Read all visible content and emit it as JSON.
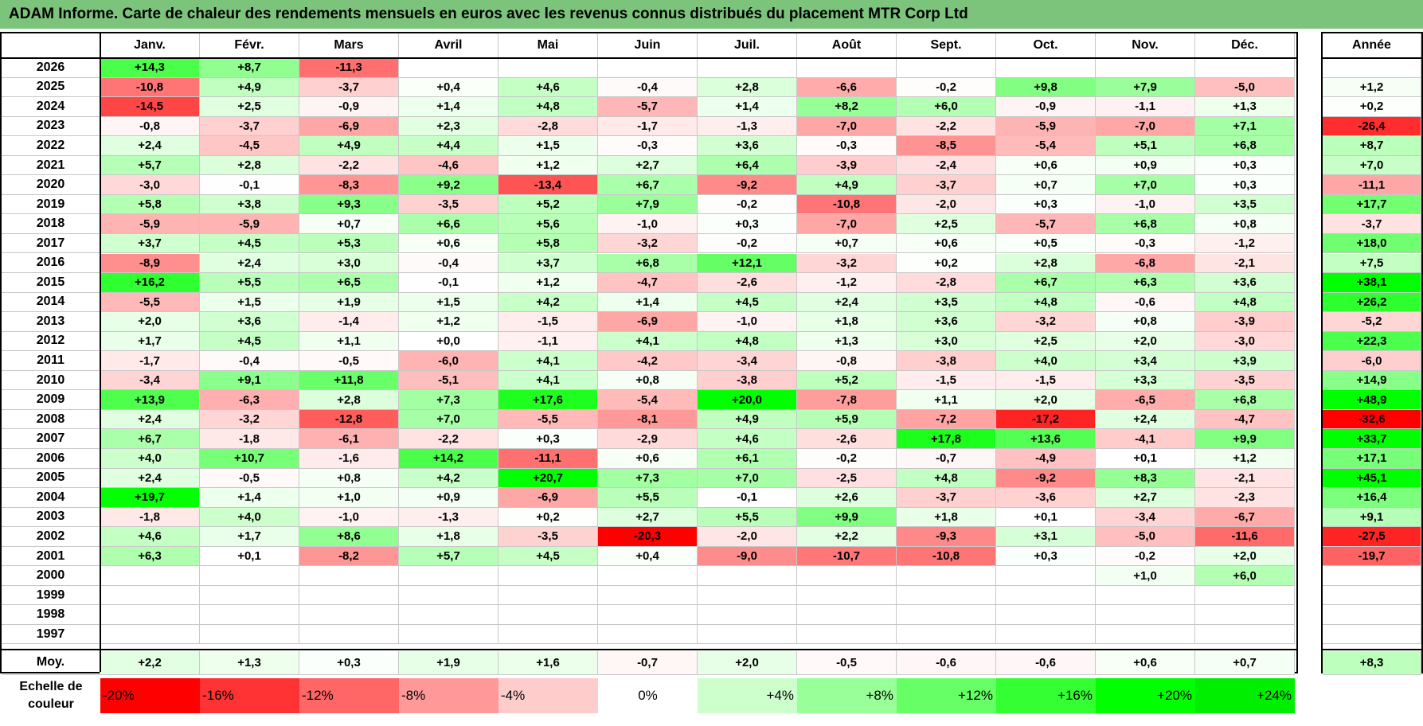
{
  "title": "ADAM Informe. Carte de chaleur des rendements mensuels en euros avec les revenus connus distribués du placement MTR Corp Ltd",
  "chart_data": {
    "type": "heatmap",
    "months": [
      "Janv.",
      "Févr.",
      "Mars",
      "Avril",
      "Mai",
      "Juin",
      "Juil.",
      "Août",
      "Sept.",
      "Oct.",
      "Nov.",
      "Déc."
    ],
    "annual_header": "Année",
    "rows": [
      {
        "year": "2026",
        "values": [
          "+14,3",
          "+8,7",
          "-11,3",
          "",
          "",
          "",
          "",
          "",
          "",
          "",
          "",
          ""
        ],
        "annual": ""
      },
      {
        "year": "2025",
        "values": [
          "-10,8",
          "+4,9",
          "-3,7",
          "+0,4",
          "+4,6",
          "-0,4",
          "+2,8",
          "-6,6",
          "-0,2",
          "+9,8",
          "+7,9",
          "-5,0"
        ],
        "annual": "+1,2"
      },
      {
        "year": "2024",
        "values": [
          "-14,5",
          "+2,5",
          "-0,9",
          "+1,4",
          "+4,8",
          "-5,7",
          "+1,4",
          "+8,2",
          "+6,0",
          "-0,9",
          "-1,1",
          "+1,3"
        ],
        "annual": "+0,2"
      },
      {
        "year": "2023",
        "values": [
          "-0,8",
          "-3,7",
          "-6,9",
          "+2,3",
          "-2,8",
          "-1,7",
          "-1,3",
          "-7,0",
          "-2,2",
          "-5,9",
          "-7,0",
          "+7,1"
        ],
        "annual": "-26,4"
      },
      {
        "year": "2022",
        "values": [
          "+2,4",
          "-4,5",
          "+4,9",
          "+4,4",
          "+1,5",
          "-0,3",
          "+3,6",
          "-0,3",
          "-8,5",
          "-5,4",
          "+5,1",
          "+6,8"
        ],
        "annual": "+8,7"
      },
      {
        "year": "2021",
        "values": [
          "+5,7",
          "+2,8",
          "-2,2",
          "-4,6",
          "+1,2",
          "+2,7",
          "+6,4",
          "-3,9",
          "-2,4",
          "+0,6",
          "+0,9",
          "+0,3"
        ],
        "annual": "+7,0"
      },
      {
        "year": "2020",
        "values": [
          "-3,0",
          "-0,1",
          "-8,3",
          "+9,2",
          "-13,4",
          "+6,7",
          "-9,2",
          "+4,9",
          "-3,7",
          "+0,7",
          "+7,0",
          "+0,3"
        ],
        "annual": "-11,1"
      },
      {
        "year": "2019",
        "values": [
          "+5,8",
          "+3,8",
          "+9,3",
          "-3,5",
          "+5,2",
          "+7,9",
          "-0,2",
          "-10,8",
          "-2,0",
          "+0,3",
          "-1,0",
          "+3,5"
        ],
        "annual": "+17,7"
      },
      {
        "year": "2018",
        "values": [
          "-5,9",
          "-5,9",
          "+0,7",
          "+6,6",
          "+5,6",
          "-1,0",
          "+0,3",
          "-7,0",
          "+2,5",
          "-5,7",
          "+6,8",
          "+0,8"
        ],
        "annual": "-3,7"
      },
      {
        "year": "2017",
        "values": [
          "+3,7",
          "+4,5",
          "+5,3",
          "+0,6",
          "+5,8",
          "-3,2",
          "-0,2",
          "+0,7",
          "+0,6",
          "+0,5",
          "-0,3",
          "-1,2"
        ],
        "annual": "+18,0"
      },
      {
        "year": "2016",
        "values": [
          "-8,9",
          "+2,4",
          "+3,0",
          "-0,4",
          "+3,7",
          "+6,8",
          "+12,1",
          "-3,2",
          "+0,2",
          "+2,8",
          "-6,8",
          "-2,1"
        ],
        "annual": "+7,5"
      },
      {
        "year": "2015",
        "values": [
          "+16,2",
          "+5,5",
          "+6,5",
          "-0,1",
          "+1,2",
          "-4,7",
          "-2,6",
          "-1,2",
          "-2,8",
          "+6,7",
          "+6,3",
          "+3,6"
        ],
        "annual": "+38,1"
      },
      {
        "year": "2014",
        "values": [
          "-5,5",
          "+1,5",
          "+1,9",
          "+1,5",
          "+4,2",
          "+1,4",
          "+4,5",
          "+2,4",
          "+3,5",
          "+4,8",
          "-0,6",
          "+4,8"
        ],
        "annual": "+26,2"
      },
      {
        "year": "2013",
        "values": [
          "+2,0",
          "+3,6",
          "-1,4",
          "+1,2",
          "-1,5",
          "-6,9",
          "-1,0",
          "+1,8",
          "+3,6",
          "-3,2",
          "+0,8",
          "-3,9"
        ],
        "annual": "-5,2"
      },
      {
        "year": "2012",
        "values": [
          "+1,7",
          "+4,5",
          "+1,1",
          "+0,0",
          "-1,1",
          "+4,1",
          "+4,8",
          "+1,3",
          "+3,0",
          "+2,5",
          "+2,0",
          "-3,0"
        ],
        "annual": "+22,3"
      },
      {
        "year": "2011",
        "values": [
          "-1,7",
          "-0,4",
          "-0,5",
          "-6,0",
          "+4,1",
          "-4,2",
          "-3,4",
          "-0,8",
          "-3,8",
          "+4,0",
          "+3,4",
          "+3,9"
        ],
        "annual": "-6,0"
      },
      {
        "year": "2010",
        "values": [
          "-3,4",
          "+9,1",
          "+11,8",
          "-5,1",
          "+4,1",
          "+0,8",
          "-3,8",
          "+5,2",
          "-1,5",
          "-1,5",
          "+3,3",
          "-3,5"
        ],
        "annual": "+14,9"
      },
      {
        "year": "2009",
        "values": [
          "+13,9",
          "-6,3",
          "+2,8",
          "+7,3",
          "+17,6",
          "-5,4",
          "+20,0",
          "-7,8",
          "+1,1",
          "+2,0",
          "-6,5",
          "+6,8"
        ],
        "annual": "+48,9"
      },
      {
        "year": "2008",
        "values": [
          "+2,4",
          "-3,2",
          "-12,8",
          "+7,0",
          "-5,5",
          "-8,1",
          "+4,9",
          "+5,9",
          "-7,2",
          "-17,2",
          "+2,4",
          "-4,7"
        ],
        "annual": "-32,6"
      },
      {
        "year": "2007",
        "values": [
          "+6,7",
          "-1,8",
          "-6,1",
          "-2,2",
          "+0,3",
          "-2,9",
          "+4,6",
          "-2,6",
          "+17,8",
          "+13,6",
          "-4,1",
          "+9,9"
        ],
        "annual": "+33,7"
      },
      {
        "year": "2006",
        "values": [
          "+4,0",
          "+10,7",
          "-1,6",
          "+14,2",
          "-11,1",
          "+0,6",
          "+6,1",
          "-0,2",
          "-0,7",
          "-4,9",
          "+0,1",
          "+1,2"
        ],
        "annual": "+17,1"
      },
      {
        "year": "2005",
        "values": [
          "+2,4",
          "-0,5",
          "+0,8",
          "+4,2",
          "+20,7",
          "+7,3",
          "+7,0",
          "-2,5",
          "+4,8",
          "-9,2",
          "+8,3",
          "-2,1"
        ],
        "annual": "+45,1"
      },
      {
        "year": "2004",
        "values": [
          "+19,7",
          "+1,4",
          "+1,0",
          "+0,9",
          "-6,9",
          "+5,5",
          "-0,1",
          "+2,6",
          "-3,7",
          "-3,6",
          "+2,7",
          "-2,3"
        ],
        "annual": "+16,4"
      },
      {
        "year": "2003",
        "values": [
          "-1,8",
          "+4,0",
          "-1,0",
          "-1,3",
          "+0,2",
          "+2,7",
          "+5,5",
          "+9,9",
          "+1,8",
          "+0,1",
          "-3,4",
          "-6,7"
        ],
        "annual": "+9,1"
      },
      {
        "year": "2002",
        "values": [
          "+4,6",
          "+1,7",
          "+8,6",
          "+1,8",
          "-3,5",
          "-20,3",
          "-2,0",
          "+2,2",
          "-9,3",
          "+3,1",
          "-5,0",
          "-11,6"
        ],
        "annual": "-27,5"
      },
      {
        "year": "2001",
        "values": [
          "+6,3",
          "+0,1",
          "-8,2",
          "+5,7",
          "+4,5",
          "+0,4",
          "-9,0",
          "-10,7",
          "-10,8",
          "+0,3",
          "-0,2",
          "+2,0"
        ],
        "annual": "-19,7"
      },
      {
        "year": "2000",
        "values": [
          "",
          "",
          "",
          "",
          "",
          "",
          "",
          "",
          "",
          "",
          "+1,0",
          "+6,0"
        ],
        "annual": ""
      },
      {
        "year": "1999",
        "values": [
          "",
          "",
          "",
          "",
          "",
          "",
          "",
          "",
          "",
          "",
          "",
          ""
        ],
        "annual": ""
      },
      {
        "year": "1998",
        "values": [
          "",
          "",
          "",
          "",
          "",
          "",
          "",
          "",
          "",
          "",
          "",
          ""
        ],
        "annual": ""
      },
      {
        "year": "1997",
        "values": [
          "",
          "",
          "",
          "",
          "",
          "",
          "",
          "",
          "",
          "",
          "",
          ""
        ],
        "annual": ""
      }
    ],
    "average": {
      "label": "Moy.",
      "values": [
        "+2,2",
        "+1,3",
        "+0,3",
        "+1,9",
        "+1,6",
        "-0,7",
        "+2,0",
        "-0,5",
        "-0,6",
        "-0,6",
        "+0,6",
        "+0,7"
      ],
      "annual": "+8,3"
    },
    "color_scale": {
      "label": "Echelle de couleur",
      "steps": [
        "-20%",
        "-16%",
        "-12%",
        "-8%",
        "-4%",
        "0%",
        "+4%",
        "+8%",
        "+12%",
        "+16%",
        "+20%",
        "+24%"
      ],
      "colors": [
        "#ff0000",
        "#ff3333",
        "#ff6666",
        "#ff9999",
        "#ffcccc",
        "#ffffff",
        "#ccffcc",
        "#99ff99",
        "#66ff66",
        "#33ff33",
        "#00ff00",
        "#00ee00"
      ]
    },
    "colors": {
      "title_bar": "#7cc37c",
      "negative": "#ff0000",
      "positive": "#00ff00",
      "neutral": "#ffffff"
    }
  }
}
